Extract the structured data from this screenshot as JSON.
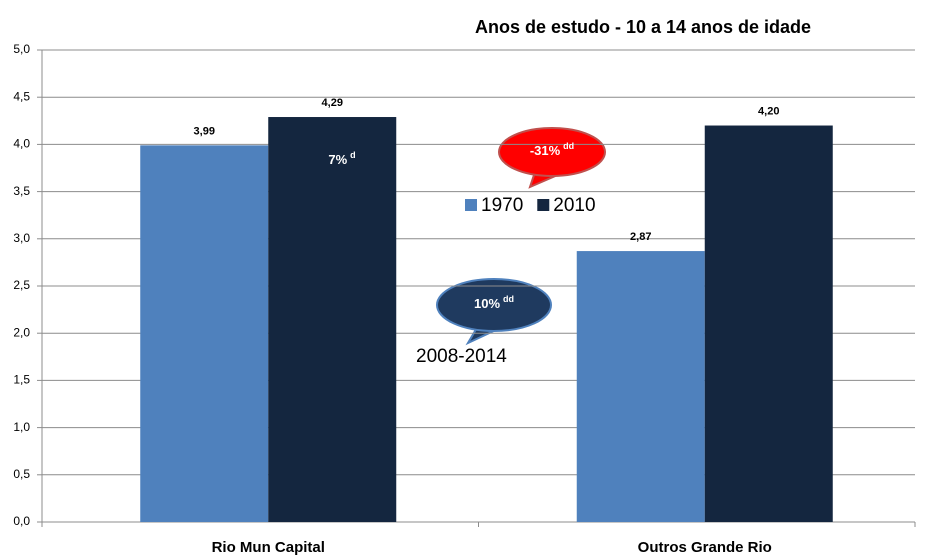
{
  "chart_data": {
    "type": "bar",
    "title": "Anos de estudo - 10 a 14 anos de idade",
    "categories": [
      "Rio Mun Capital",
      "Outros Grande Rio"
    ],
    "series": [
      {
        "name": "1970",
        "color": "#4f81bd",
        "values": [
          3.99,
          2.87
        ],
        "value_labels": [
          "3,99",
          "2,87"
        ]
      },
      {
        "name": "2010",
        "color": "#14263f",
        "values": [
          4.29,
          4.2
        ],
        "value_labels": [
          "4,29",
          "4,20"
        ]
      }
    ],
    "ylim": [
      0,
      5
    ],
    "yticks": [
      {
        "value": 0,
        "label": "0,0"
      },
      {
        "value": 0.5,
        "label": "0,5"
      },
      {
        "value": 1,
        "label": "1,0"
      },
      {
        "value": 1.5,
        "label": "1,5"
      },
      {
        "value": 2,
        "label": "2,0"
      },
      {
        "value": 2.5,
        "label": "2,5"
      },
      {
        "value": 3,
        "label": "3,0"
      },
      {
        "value": 3.5,
        "label": "3,5"
      },
      {
        "value": 4,
        "label": "4,0"
      },
      {
        "value": 4.5,
        "label": "4,5"
      },
      {
        "value": 5,
        "label": "5,0"
      }
    ],
    "grid": true,
    "annotations": [
      {
        "text": "7%",
        "sup": "d"
      },
      {
        "text": "-31%",
        "sup": "dd"
      },
      {
        "text": "10%",
        "sup": "dd"
      },
      {
        "text": "2008-2014"
      }
    ]
  }
}
